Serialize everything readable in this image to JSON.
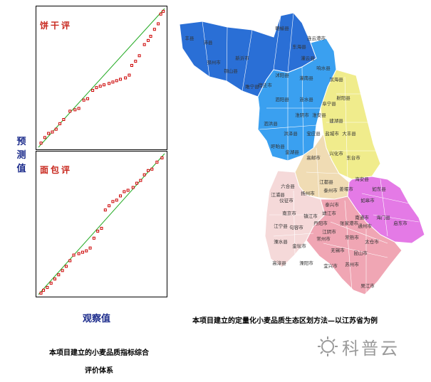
{
  "left_figure": {
    "y_axis_label": "预测值",
    "x_axis_label": "观察值",
    "caption_line1": "本项目建立的小麦品质指标综合",
    "caption_line2": "评价体系"
  },
  "chart_data": [
    {
      "type": "scatter",
      "title": "饼干评",
      "xlabel": "观察值",
      "ylabel": "预测值",
      "colors": {
        "points": "#cc0000",
        "fit_line": "#22aa22"
      },
      "xlim": [
        0,
        1
      ],
      "ylim": [
        0,
        1
      ],
      "points": [
        {
          "x": 0.02,
          "y": 0.03
        },
        {
          "x": 0.05,
          "y": 0.07
        },
        {
          "x": 0.08,
          "y": 0.1
        },
        {
          "x": 0.11,
          "y": 0.11
        },
        {
          "x": 0.14,
          "y": 0.13
        },
        {
          "x": 0.17,
          "y": 0.17
        },
        {
          "x": 0.2,
          "y": 0.2
        },
        {
          "x": 0.25,
          "y": 0.26
        },
        {
          "x": 0.29,
          "y": 0.27
        },
        {
          "x": 0.32,
          "y": 0.28
        },
        {
          "x": 0.36,
          "y": 0.34
        },
        {
          "x": 0.39,
          "y": 0.35
        },
        {
          "x": 0.43,
          "y": 0.41
        },
        {
          "x": 0.46,
          "y": 0.43
        },
        {
          "x": 0.49,
          "y": 0.44
        },
        {
          "x": 0.52,
          "y": 0.45
        },
        {
          "x": 0.56,
          "y": 0.46
        },
        {
          "x": 0.59,
          "y": 0.47
        },
        {
          "x": 0.62,
          "y": 0.48
        },
        {
          "x": 0.65,
          "y": 0.49
        },
        {
          "x": 0.69,
          "y": 0.5
        },
        {
          "x": 0.72,
          "y": 0.52
        },
        {
          "x": 0.74,
          "y": 0.59
        },
        {
          "x": 0.77,
          "y": 0.62
        },
        {
          "x": 0.8,
          "y": 0.66
        },
        {
          "x": 0.84,
          "y": 0.74
        },
        {
          "x": 0.87,
          "y": 0.77
        },
        {
          "x": 0.89,
          "y": 0.8
        },
        {
          "x": 0.92,
          "y": 0.85
        },
        {
          "x": 0.95,
          "y": 0.89
        },
        {
          "x": 0.97,
          "y": 0.96
        },
        {
          "x": 0.99,
          "y": 0.98
        }
      ],
      "fit_line": [
        [
          0,
          0
        ],
        [
          1,
          1
        ]
      ]
    },
    {
      "type": "scatter",
      "title": "面包评",
      "xlabel": "观察值",
      "ylabel": "预测值",
      "colors": {
        "points": "#cc0000",
        "fit_line": "#22aa22"
      },
      "xlim": [
        0,
        1
      ],
      "ylim": [
        0,
        1
      ],
      "points": [
        {
          "x": 0.02,
          "y": 0.01
        },
        {
          "x": 0.04,
          "y": 0.03
        },
        {
          "x": 0.07,
          "y": 0.05
        },
        {
          "x": 0.1,
          "y": 0.08
        },
        {
          "x": 0.13,
          "y": 0.11
        },
        {
          "x": 0.16,
          "y": 0.14
        },
        {
          "x": 0.19,
          "y": 0.17
        },
        {
          "x": 0.22,
          "y": 0.2
        },
        {
          "x": 0.25,
          "y": 0.24
        },
        {
          "x": 0.28,
          "y": 0.28
        },
        {
          "x": 0.32,
          "y": 0.29
        },
        {
          "x": 0.35,
          "y": 0.3
        },
        {
          "x": 0.38,
          "y": 0.31
        },
        {
          "x": 0.41,
          "y": 0.33
        },
        {
          "x": 0.44,
          "y": 0.4
        },
        {
          "x": 0.47,
          "y": 0.45
        },
        {
          "x": 0.5,
          "y": 0.47
        },
        {
          "x": 0.53,
          "y": 0.6
        },
        {
          "x": 0.56,
          "y": 0.63
        },
        {
          "x": 0.59,
          "y": 0.66
        },
        {
          "x": 0.62,
          "y": 0.67
        },
        {
          "x": 0.65,
          "y": 0.7
        },
        {
          "x": 0.68,
          "y": 0.73
        },
        {
          "x": 0.71,
          "y": 0.74
        },
        {
          "x": 0.75,
          "y": 0.76
        },
        {
          "x": 0.78,
          "y": 0.79
        },
        {
          "x": 0.81,
          "y": 0.81
        },
        {
          "x": 0.84,
          "y": 0.85
        },
        {
          "x": 0.87,
          "y": 0.88
        },
        {
          "x": 0.9,
          "y": 0.89
        },
        {
          "x": 0.94,
          "y": 0.94
        },
        {
          "x": 0.98,
          "y": 0.97
        }
      ],
      "fit_line": [
        [
          0,
          0
        ],
        [
          1,
          1
        ]
      ]
    }
  ],
  "right_figure": {
    "caption": "本项目建立的定量化小麦品质生态区划方法—以江苏省为例",
    "zones": [
      {
        "name": "zone-dark-blue",
        "color": "#2a6fd6"
      },
      {
        "name": "zone-light-blue",
        "color": "#3aa0f0"
      },
      {
        "name": "zone-yellow",
        "color": "#f0ec8c"
      },
      {
        "name": "zone-tan",
        "color": "#f0dcb4"
      },
      {
        "name": "zone-light-pink",
        "color": "#f5d9d9"
      },
      {
        "name": "zone-magenta",
        "color": "#e47ae6"
      },
      {
        "name": "zone-pink",
        "color": "#f0a6b4"
      }
    ],
    "labels": [
      "赣榆县",
      "东海县",
      "连云港市",
      "灌云县",
      "丰县",
      "沛县",
      "邳州市",
      "新沂市",
      "铜山县",
      "睢宁县",
      "宿迁市",
      "沭阳县",
      "灌南县",
      "响水县",
      "泗阳县",
      "涟水县",
      "滨海县",
      "阜宁县",
      "射阳县",
      "泗洪县",
      "淮阴市",
      "淮安县",
      "洪泽县",
      "建湖县",
      "盐城市",
      "盱眙县",
      "宝应县",
      "金湖县",
      "大丰县",
      "兴化市",
      "东台市",
      "高邮市",
      "海安县",
      "如东县",
      "江都县",
      "泰州市",
      "姜堰市",
      "如皋市",
      "扬州市",
      "南通市",
      "六合县",
      "仪征市",
      "江浦县",
      "南京市",
      "镇江市",
      "泰兴市",
      "靖江市",
      "通州市",
      "海门县",
      "启东市",
      "江宁县",
      "句容市",
      "丹阳市",
      "江阴市",
      "张家港市",
      "常熟市",
      "太仓市",
      "溧水县",
      "金坛市",
      "常州市",
      "无锡市",
      "昆山市",
      "高淳县",
      "溧阳市",
      "宜兴市",
      "苏州市",
      "吴江市"
    ]
  },
  "watermark": {
    "text": "科普云",
    "icon": "sun-logo-icon"
  }
}
